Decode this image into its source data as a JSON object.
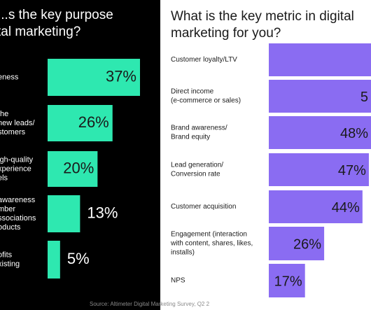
{
  "chart_data": [
    {
      "type": "bar",
      "orientation": "horizontal",
      "title": "...s the key purpose\ntal marketing?",
      "categories": [
        "...eness",
        "...the\n...new leads/\n...stomers",
        "...igh-quality\n...xperience\n...els",
        "...awareness\n...mber\n...ssociations\n...oducts",
        "...ofits\n...xisting"
      ],
      "values": [
        37,
        26,
        20,
        13,
        5
      ],
      "value_labels": [
        "37%",
        "26%",
        "20%",
        "13%",
        "5%"
      ],
      "unit": "%",
      "xlim": [
        0,
        37
      ],
      "grid": false,
      "legend": "none"
    },
    {
      "type": "bar",
      "orientation": "horizontal",
      "title": "What is the key metric in digital\nmarketing for you?",
      "categories": [
        "Customer loyalty/LTV",
        "Direct income\n(e-commerce or sales)",
        "Brand awareness/\nBrand equity",
        "Lead generation/\nConversion rate",
        "Customer acquisition",
        "Engagement (interaction\nwith content, shares, likes,\ninstalls)",
        "NPS"
      ],
      "values": [
        null,
        null,
        48,
        47,
        44,
        26,
        17
      ],
      "value_labels": [
        "",
        "5",
        "48%",
        "47%",
        "44%",
        "26%",
        "17%"
      ],
      "unit": "%",
      "xlim": [
        0,
        48
      ],
      "grid": false,
      "legend": "none",
      "source": "Source: Altimeter Digital Marketing Survey, Q2 2"
    }
  ],
  "colors": {
    "left_background": "#000000",
    "left_bar": "#2ee8b0",
    "left_text": "#ffffff",
    "left_value_text": "#1a1a1a",
    "right_background": "#ffffff",
    "right_bar": "#8a6cf2",
    "right_text": "#1a1a1a",
    "source_text": "#8a8a8a"
  }
}
